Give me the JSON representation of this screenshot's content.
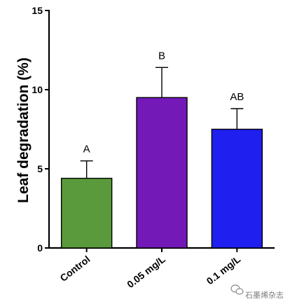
{
  "chart_data": {
    "type": "bar",
    "categories": [
      "Control",
      "0.05 mg/L",
      "0.1 mg/L"
    ],
    "values": [
      4.4,
      9.5,
      7.5
    ],
    "errors": [
      1.1,
      1.9,
      1.3
    ],
    "significance": [
      "A",
      "B",
      "AB"
    ],
    "colors": [
      "#5a9a3c",
      "#7219b8",
      "#1f1ff0"
    ],
    "title": "",
    "xlabel": "",
    "ylabel": "Leaf degradation (%)",
    "ylim": [
      0,
      15
    ],
    "yticks": [
      0,
      5,
      10,
      15
    ],
    "grid": false,
    "legend": "none"
  },
  "watermark": {
    "icon": "wechat-icon",
    "text": "石墨烯杂志"
  }
}
